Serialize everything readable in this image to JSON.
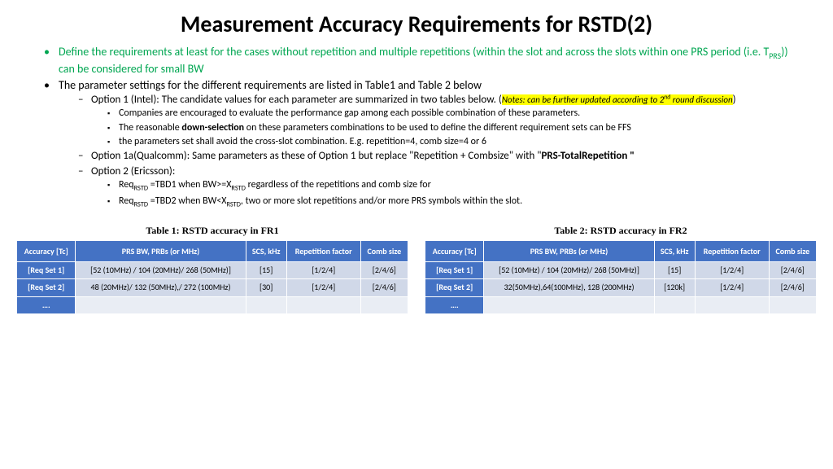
{
  "title": "Measurement Accuracy Requirements for RSTD(2)",
  "bullets": {
    "b1_pre": "Define the requirements at least for the cases without repetition and multiple repetitions (within the slot and across the slots within one PRS period (i.e. T",
    "b1_sub": "PRS",
    "b1_post": ")) can be considered for small BW",
    "b2": "The parameter settings for the different requirements are listed in Table1 and Table 2 below",
    "opt1_pre": "Option 1 (Intel): The candidate values for each parameter are  summarized in two tables below. (",
    "opt1_note_pre": "Notes: can be further updated according to 2",
    "opt1_note_sup": "nd",
    "opt1_note_post": " round discussion",
    "opt1_post": ")",
    "sq1": "Companies are encouraged to evaluate the performance gap  among each possible combination of these parameters.",
    "sq2_pre": "The reasonable ",
    "sq2_bold": "down-selection",
    "sq2_post": " on these parameters combinations to be used to define the different requirement sets can be FFS",
    "sq3": "the parameters set shall avoid the cross-slot combination. E.g. repetition=4, comb size=4 or 6",
    "opt1a_pre": "Option 1a(Qualcomm): Same parameters as these of Option 1 but replace \"Repetition + Combsize\" with \"",
    "opt1a_bold": "PRS-TotalRepetition \"",
    "opt2": "Option 2 (Ericsson):",
    "e1_pre": "Req",
    "e1_sub": "RSTD",
    "e1_mid": " =TBD1 when BW>=X",
    "e1_sub2": "RSTD",
    "e1_post": " regardless of the repetitions and comb size for",
    "e2_pre": "Req",
    "e2_sub": "RSTD",
    "e2_mid": " =TBD2  when BW<X",
    "e2_sub2": "RSTD",
    "e2_post": ", two or more slot repetitions and/or more PRS symbols within the slot."
  },
  "table1": {
    "caption": "Table 1: RSTD accuracy in FR1",
    "headers": [
      "Accuracy [Tc]",
      "PRS BW, PRBs (or MHz)",
      "SCS, kHz",
      "Repetition factor",
      "Comb size"
    ],
    "rows": [
      {
        "h": "[Req Set 1]",
        "c": [
          "[52 (10MHz) / 104 (20MHz)/ 268 (50MHz)]",
          "[15]",
          "[1/2/4]",
          "[2/4/6]"
        ]
      },
      {
        "h": "[Req Set 2]",
        "c": [
          "48 (20MHz)/ 132 (50MHz),/ 272 (100MHz)",
          "[30]",
          "[1/2/4]",
          "[2/4/6]"
        ]
      },
      {
        "h": "….",
        "c": [
          "",
          "",
          "",
          ""
        ]
      }
    ]
  },
  "table2": {
    "caption": "Table 2: RSTD accuracy in FR2",
    "headers": [
      "Accuracy [Tc]",
      "PRS BW, PRBs (or MHz)",
      "SCS, kHz",
      "Repetition factor",
      "Comb size"
    ],
    "rows": [
      {
        "h": "[Req Set 1]",
        "c": [
          "[52 (10MHz) / 104 (20MHz)/ 268 (50MHz)]",
          "[15]",
          "[1/2/4]",
          "[2/4/6]"
        ]
      },
      {
        "h": "[Req Set 2]",
        "c": [
          "32(50MHz),64(100MHz), 128 (200MHz)",
          "[120k]",
          "[1/2/4]",
          "[2/4/6]"
        ]
      },
      {
        "h": "….",
        "c": [
          "",
          "",
          "",
          ""
        ]
      }
    ]
  },
  "colors": {
    "header_bg": "#4472c4",
    "row_bg": "#d0d8e8",
    "empty_bg": "#e9edf4",
    "green": "#00a651",
    "highlight": "#ffff00"
  }
}
